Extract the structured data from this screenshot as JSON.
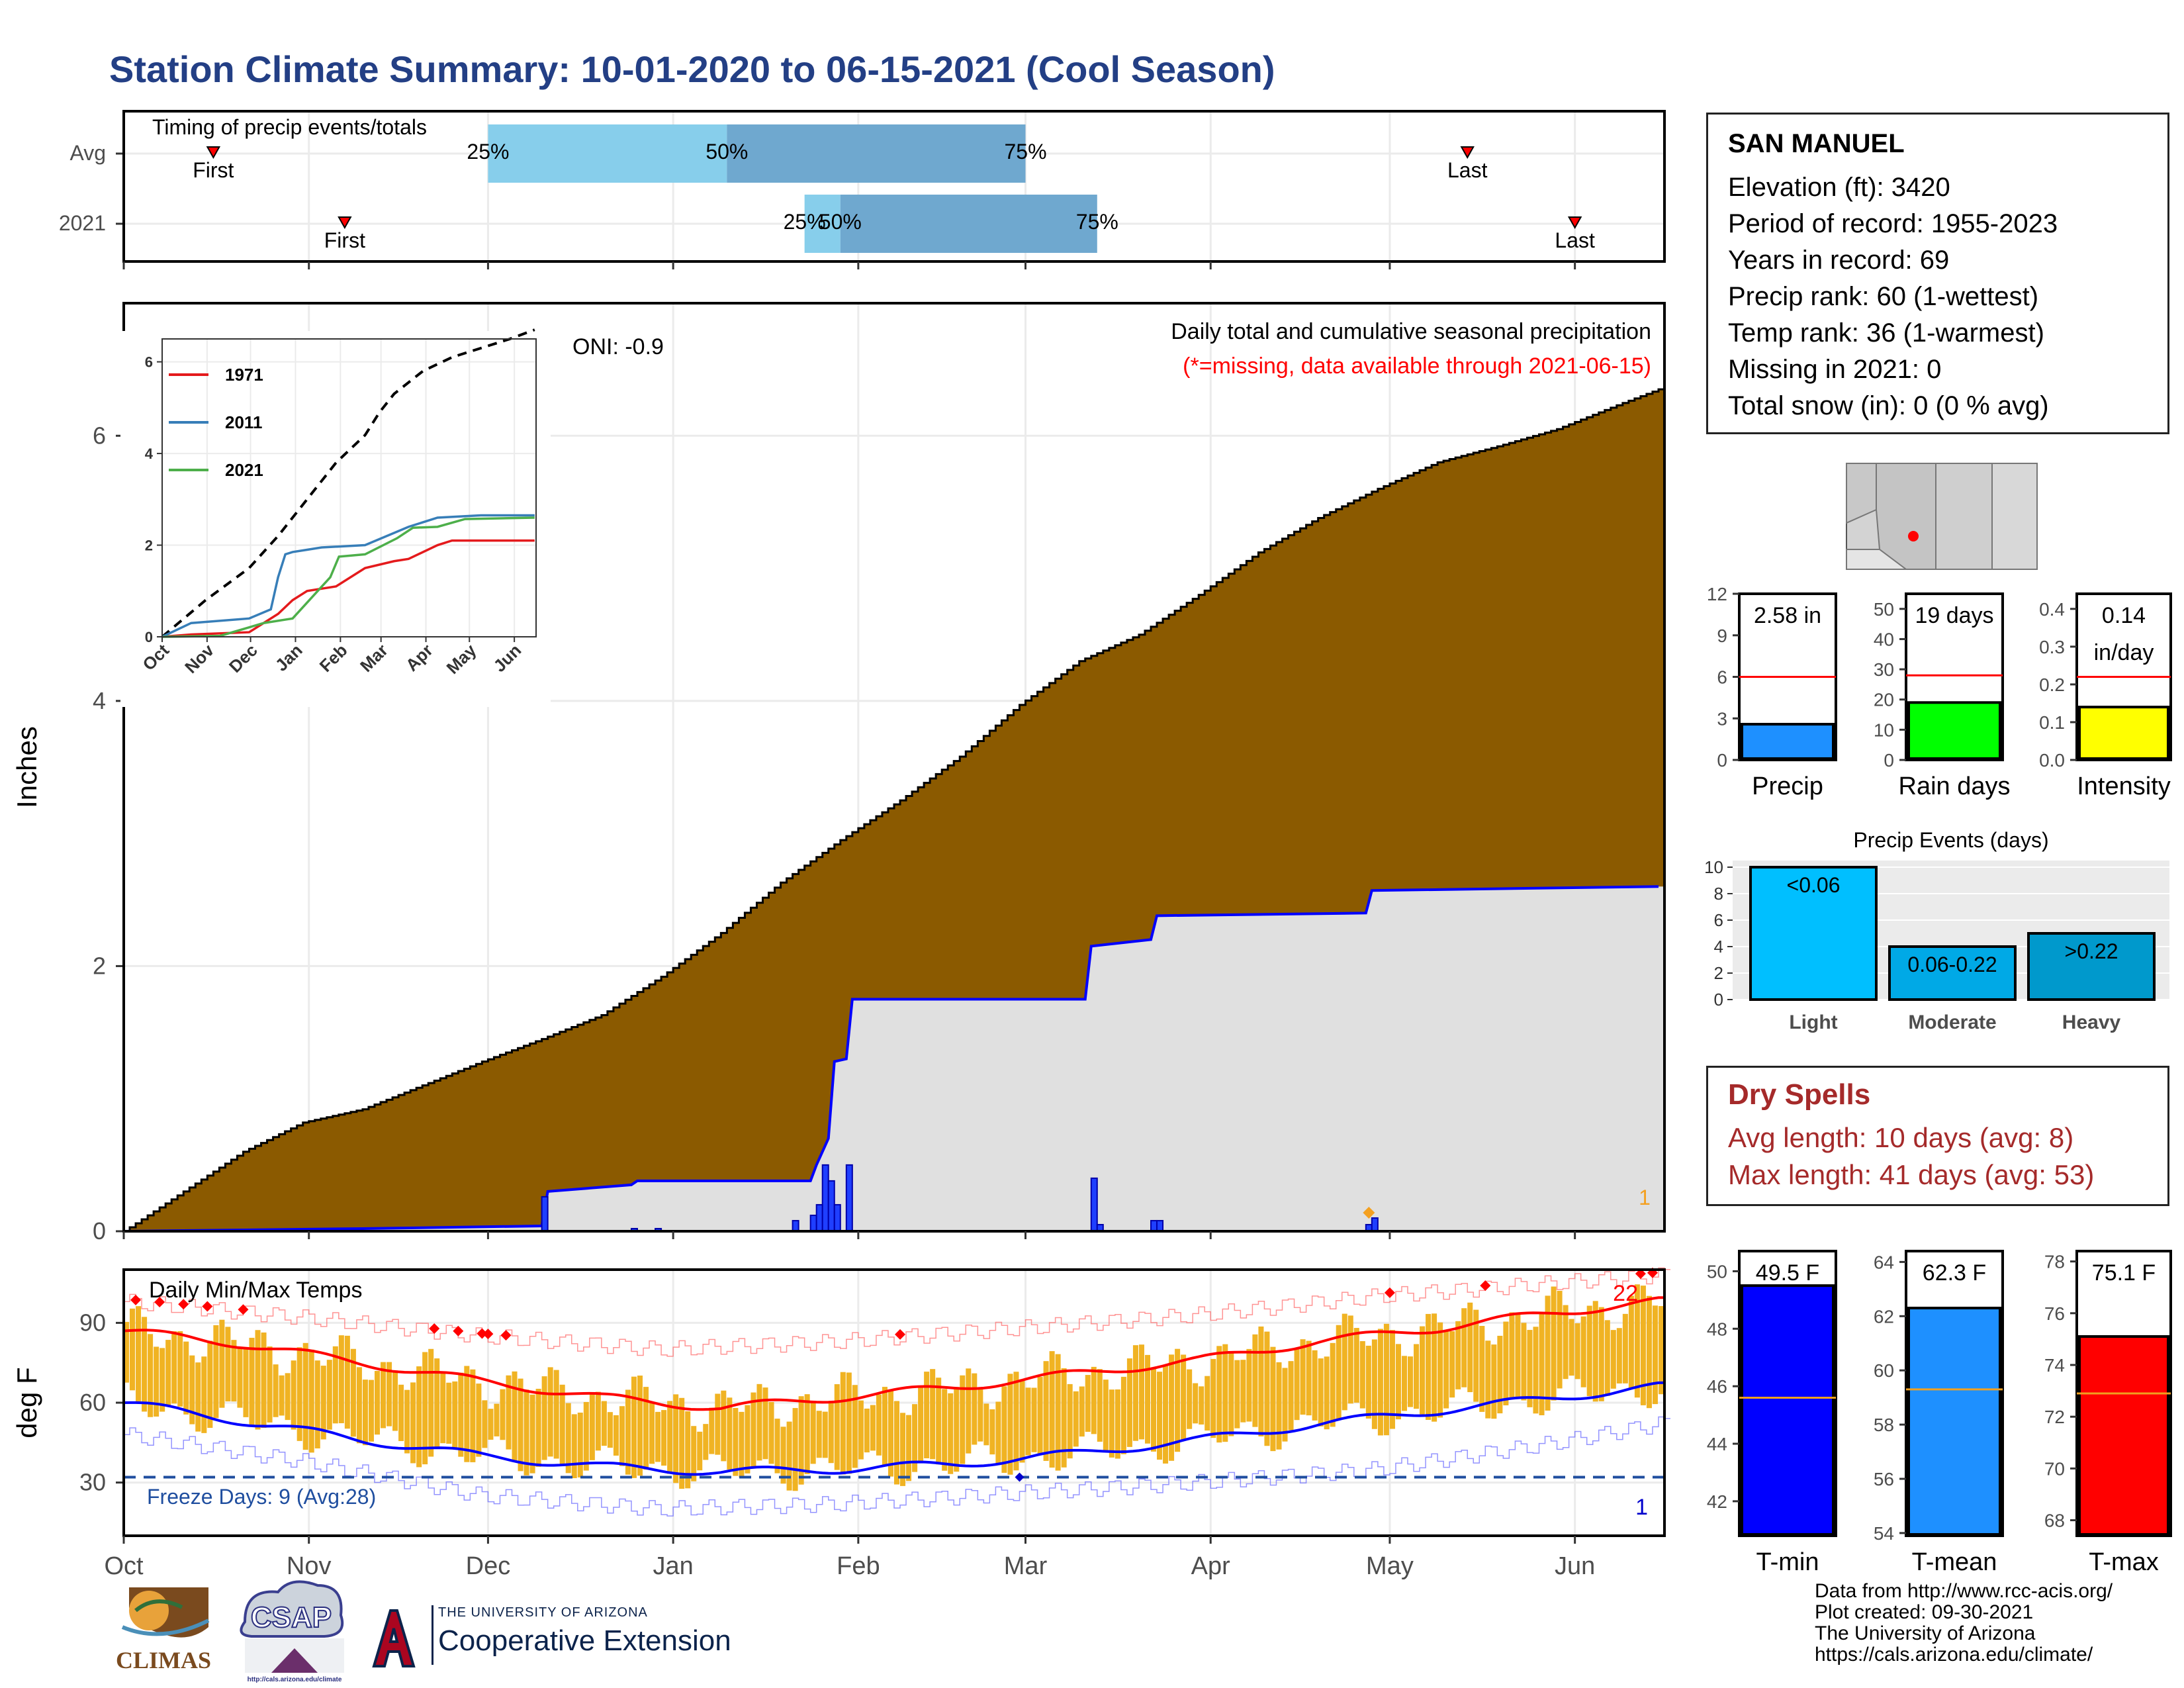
{
  "title": "Station Climate Summary: 10-01-2020 to 06-15-2021 (Cool Season)",
  "station": {
    "name": "SAN MANUEL",
    "lines": [
      "Elevation (ft): 3420",
      "Period of record: 1955-2023",
      "Years in record: 69",
      "Precip rank: 60 (1-wettest)",
      "Temp rank: 36 (1-warmest)",
      "Missing in 2021: 0",
      "Total snow (in): 0 (0 % avg)"
    ]
  },
  "dry_spells": {
    "heading": "Dry Spells",
    "avg": "Avg length: 10 days (avg: 8)",
    "max": "Max length: 41 days (avg: 53)"
  },
  "credits": [
    "Data from http://www.rcc-acis.org/",
    "Plot created: 09-30-2021",
    "The University of Arizona",
    "https://cals.arizona.edu/climate/"
  ],
  "logos": {
    "climas": "CLIMAS",
    "csap": "CSAP",
    "csap_url": "http://cals.arizona.edu/climate",
    "ua_line1": "THE UNIVERSITY OF ARIZONA",
    "ua_line2": "Cooperative Extension"
  },
  "colors": {
    "title": "#233f85",
    "cumulative_fill": "#8b5a00",
    "normal_fill": "#e0e0e0",
    "precip_line": "#0000ff",
    "timing_light": "#87ceeb",
    "timing_dark": "#6fa8cf",
    "temp_bar": "#f0b323",
    "tmax_line": "#ff0000",
    "tmin_line": "#0000ff",
    "dry_spell": "#a52a2a"
  },
  "chart_data": [
    {
      "id": "timing",
      "type": "bar",
      "title": "Timing of precip events/totals",
      "x_months": [
        "Oct",
        "Nov",
        "Dec",
        "Jan",
        "Feb",
        "Mar",
        "Apr",
        "May",
        "Jun"
      ],
      "rows": [
        {
          "name": "Avg",
          "first": "Oct 16",
          "p25": "Dec 1",
          "p50": "Jan 10",
          "p75": "Mar 1",
          "last": "May 14",
          "labels": {
            "first": "First",
            "p25": "25%",
            "p50": "50%",
            "p75": "75%",
            "last": "Last"
          }
        },
        {
          "name": "2021",
          "first": "Nov 7",
          "p25": "Jan 23",
          "p50": "Jan 29",
          "p75": "Mar 13",
          "last": "Jun 1",
          "labels": {
            "first": "First",
            "p25": "25%",
            "p50": "50%",
            "p75": "75%",
            "last": "Last"
          }
        }
      ]
    },
    {
      "id": "precip",
      "type": "area",
      "title": "Daily total and cumulative seasonal precipitation",
      "subtitle": "(*=missing, data available through 2021-06-15)",
      "oni": "ONI: -0.9",
      "ylabel": "Inches",
      "ylim": [
        0,
        7
      ],
      "yticks": [
        0,
        2,
        4,
        6
      ],
      "x_months": [
        "Oct",
        "Nov",
        "Dec",
        "Jan",
        "Feb",
        "Mar",
        "Apr",
        "May",
        "Jun"
      ],
      "corner_count": "1",
      "cumulative_avg": {
        "day": [
          0,
          10,
          20,
          30,
          40,
          50,
          60,
          70,
          80,
          90,
          100,
          110,
          120,
          130,
          140,
          150,
          160,
          170,
          180,
          190,
          200,
          210,
          220,
          230,
          240,
          250,
          257
        ],
        "inches": [
          0,
          0.3,
          0.6,
          0.82,
          0.92,
          1.1,
          1.28,
          1.45,
          1.63,
          1.92,
          2.25,
          2.63,
          2.95,
          3.25,
          3.58,
          3.97,
          4.3,
          4.5,
          4.8,
          5.12,
          5.38,
          5.6,
          5.8,
          5.92,
          6.05,
          6.23,
          6.35
        ]
      },
      "cumulative_2021": {
        "day": [
          0,
          40,
          70,
          71,
          85,
          86,
          115,
          116,
          118,
          119,
          121,
          122,
          161,
          162,
          172,
          173,
          208,
          209,
          257
        ],
        "inches": [
          0,
          0.02,
          0.04,
          0.3,
          0.35,
          0.38,
          0.38,
          0.5,
          0.7,
          1.28,
          1.3,
          1.75,
          1.75,
          2.15,
          2.2,
          2.38,
          2.4,
          2.57,
          2.6
        ]
      },
      "daily_2021": {
        "day": [
          70,
          85,
          89,
          112,
          115,
          116,
          117,
          118,
          119,
          121,
          162,
          163,
          172,
          173,
          208,
          209
        ],
        "inches": [
          0.26,
          0.02,
          0.02,
          0.08,
          0.12,
          0.2,
          0.5,
          0.38,
          0.2,
          0.5,
          0.4,
          0.05,
          0.08,
          0.08,
          0.05,
          0.1
        ]
      }
    },
    {
      "id": "inset",
      "type": "line",
      "ylim": [
        0,
        6.5
      ],
      "yticks": [
        0,
        2,
        4,
        6
      ],
      "x_months": [
        "Oct",
        "Nov",
        "Dec",
        "Jan",
        "Feb",
        "Mar",
        "Apr",
        "May",
        "Jun"
      ],
      "series": [
        {
          "name": "",
          "style": "dashed-black",
          "day": [
            0,
            30,
            60,
            80,
            100,
            120,
            140,
            150,
            160,
            180,
            200,
            220,
            240,
            257
          ],
          "inches": [
            0,
            0.8,
            1.5,
            2.2,
            3.0,
            3.8,
            4.4,
            4.9,
            5.3,
            5.8,
            6.1,
            6.3,
            6.5,
            6.7
          ]
        },
        {
          "name": "1971",
          "day": [
            0,
            20,
            60,
            80,
            90,
            100,
            110,
            120,
            140,
            160,
            170,
            190,
            200,
            257
          ],
          "inches": [
            0,
            0.05,
            0.1,
            0.5,
            0.8,
            1.0,
            1.05,
            1.1,
            1.5,
            1.65,
            1.7,
            2.0,
            2.1,
            2.1
          ]
        },
        {
          "name": "2011",
          "day": [
            0,
            20,
            60,
            75,
            80,
            85,
            90,
            100,
            110,
            140,
            170,
            190,
            220,
            257
          ],
          "inches": [
            0,
            0.3,
            0.4,
            0.6,
            1.3,
            1.8,
            1.85,
            1.9,
            1.95,
            2.0,
            2.4,
            2.6,
            2.65,
            2.65
          ]
        },
        {
          "name": "2021",
          "day": [
            0,
            40,
            70,
            86,
            90,
            116,
            122,
            140,
            162,
            173,
            190,
            209,
            257
          ],
          "inches": [
            0,
            0.02,
            0.3,
            0.38,
            0.4,
            1.3,
            1.75,
            1.8,
            2.15,
            2.38,
            2.4,
            2.57,
            2.6
          ]
        }
      ]
    },
    {
      "id": "temps",
      "type": "area",
      "title": "Daily Min/Max Temps",
      "ylabel": "deg F",
      "ylim": [
        10,
        110
      ],
      "yticks": [
        30,
        60,
        90
      ],
      "x_months": [
        "Oct",
        "Nov",
        "Dec",
        "Jan",
        "Feb",
        "Mar",
        "Apr",
        "May",
        "Jun"
      ],
      "freeze_line": 32,
      "freeze_label": "Freeze Days: 9 (Avg:28)",
      "record_high_count": "22",
      "record_low_count": "1",
      "avg_tmax": {
        "day": [
          0,
          20,
          40,
          60,
          80,
          100,
          120,
          140,
          160,
          180,
          200,
          220,
          240,
          257
        ],
        "temp": [
          87,
          82,
          75,
          68,
          62,
          58,
          62,
          66,
          71,
          76,
          83,
          88,
          94,
          98
        ]
      },
      "avg_tmin": {
        "day": [
          0,
          20,
          40,
          60,
          80,
          100,
          120,
          140,
          160,
          180,
          200,
          220,
          240,
          257
        ],
        "temp": [
          60,
          53,
          46,
          40,
          36,
          34,
          35,
          37,
          41,
          46,
          52,
          57,
          62,
          66
        ]
      },
      "rec_max": {
        "day": [
          0,
          30,
          60,
          90,
          120,
          150,
          180,
          210,
          240,
          257
        ],
        "temp": [
          98,
          92,
          85,
          80,
          83,
          88,
          93,
          100,
          105,
          108
        ]
      },
      "rec_min": {
        "day": [
          0,
          30,
          60,
          90,
          120,
          150,
          180,
          210,
          240,
          257
        ],
        "temp": [
          48,
          38,
          25,
          20,
          22,
          26,
          30,
          35,
          45,
          52
        ]
      }
    },
    {
      "id": "summary_precip",
      "type": "bar",
      "panels": [
        {
          "name": "Precip",
          "value": 2.58,
          "label": "2.58 in",
          "avg": 6.0,
          "ylim": [
            0,
            12
          ],
          "yticks": [
            0,
            3,
            6,
            9,
            12
          ],
          "color": "#1e90ff"
        },
        {
          "name": "Rain days",
          "value": 19,
          "label": "19 days",
          "avg": 28,
          "ylim": [
            0,
            55
          ],
          "yticks": [
            0,
            10,
            20,
            30,
            40,
            50
          ],
          "color": "#00ff00"
        },
        {
          "name": "Intensity",
          "value": 0.14,
          "label": "0.14 in/day",
          "label_lines": [
            "0.14",
            "in/day"
          ],
          "avg": 0.22,
          "ylim": [
            0,
            0.44
          ],
          "yticks": [
            0.0,
            0.1,
            0.2,
            0.3,
            0.4
          ],
          "color": "#ffff00"
        }
      ]
    },
    {
      "id": "precip_events",
      "type": "bar",
      "title": "Precip Events (days)",
      "categories": [
        "Light",
        "Moderate",
        "Heavy"
      ],
      "bar_labels": [
        "<0.06",
        "0.06-0.22",
        ">0.22"
      ],
      "values": [
        10,
        4,
        5
      ],
      "ylim": [
        0,
        10.5
      ],
      "yticks": [
        0,
        2,
        4,
        6,
        8,
        10
      ],
      "colors": [
        "#00bfff",
        "#00a9e6",
        "#0099cc"
      ]
    },
    {
      "id": "summary_temps",
      "type": "bar",
      "panels": [
        {
          "name": "T-min",
          "value": 49.5,
          "label": "49.5 F",
          "avg": 45.6,
          "ylim": [
            40.8,
            50.7
          ],
          "yticks": [
            42,
            44,
            46,
            48,
            50
          ],
          "color": "#0000ff"
        },
        {
          "name": "T-mean",
          "value": 62.3,
          "label": "62.3 F",
          "avg": 59.3,
          "ylim": [
            53.9,
            64.4
          ],
          "yticks": [
            54,
            56,
            58,
            60,
            62,
            64
          ],
          "color": "#1e90ff"
        },
        {
          "name": "T-max",
          "value": 75.1,
          "label": "75.1 F",
          "avg": 72.9,
          "ylim": [
            67.4,
            78.4
          ],
          "yticks": [
            68,
            70,
            72,
            74,
            76,
            78
          ],
          "color": "#ff0000"
        }
      ]
    }
  ]
}
